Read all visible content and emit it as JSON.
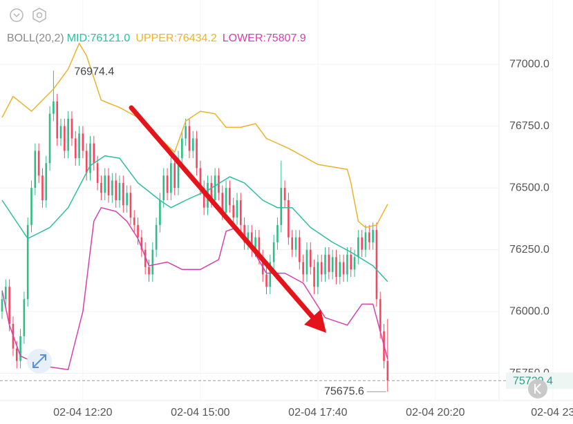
{
  "chart_data": {
    "type": "candlestick",
    "indicator": "BOLL(20,2)",
    "x": [
      "02-04 10:30",
      "02-04 10:35",
      "02-04 10:40",
      "02-04 10:45",
      "02-04 10:50",
      "02-04 10:55",
      "02-04 11:00",
      "02-04 11:05",
      "02-04 11:10",
      "02-04 11:15",
      "02-04 11:20",
      "02-04 11:25",
      "02-04 11:30",
      "02-04 11:35",
      "02-04 11:40",
      "02-04 11:45",
      "02-04 11:50",
      "02-04 11:55",
      "02-04 12:00",
      "02-04 12:05",
      "02-04 12:10",
      "02-04 12:15",
      "02-04 12:20",
      "02-04 12:25",
      "02-04 12:30",
      "02-04 12:35",
      "02-04 12:40",
      "02-04 12:45",
      "02-04 12:50",
      "02-04 12:55",
      "02-04 13:00",
      "02-04 13:05",
      "02-04 13:10",
      "02-04 13:15",
      "02-04 13:20",
      "02-04 13:25",
      "02-04 13:30",
      "02-04 13:35",
      "02-04 13:40",
      "02-04 13:45",
      "02-04 13:50",
      "02-04 13:55",
      "02-04 14:00",
      "02-04 14:05",
      "02-04 14:10",
      "02-04 14:15",
      "02-04 14:20",
      "02-04 14:25",
      "02-04 14:30",
      "02-04 14:35",
      "02-04 14:40",
      "02-04 14:45",
      "02-04 14:50",
      "02-04 14:55",
      "02-04 15:00",
      "02-04 15:05",
      "02-04 15:10",
      "02-04 15:15",
      "02-04 15:20",
      "02-04 15:25",
      "02-04 15:30",
      "02-04 15:35",
      "02-04 15:40",
      "02-04 15:45",
      "02-04 15:50",
      "02-04 15:55",
      "02-04 16:00",
      "02-04 16:05",
      "02-04 16:10",
      "02-04 16:15",
      "02-04 16:20",
      "02-04 16:25",
      "02-04 16:30",
      "02-04 16:35",
      "02-04 16:40",
      "02-04 16:45",
      "02-04 16:50",
      "02-04 16:55",
      "02-04 17:00",
      "02-04 17:05",
      "02-04 17:10",
      "02-04 17:15",
      "02-04 17:20",
      "02-04 17:25",
      "02-04 17:30",
      "02-04 17:35",
      "02-04 17:40",
      "02-04 17:45",
      "02-04 17:50",
      "02-04 17:55",
      "02-04 18:00",
      "02-04 18:05",
      "02-04 18:10",
      "02-04 18:15",
      "02-04 18:20",
      "02-04 18:25",
      "02-04 18:30",
      "02-04 18:35",
      "02-04 18:40",
      "02-04 18:45",
      "02-04 18:50",
      "02-04 18:55",
      "02-04 19:00",
      "02-04 19:05",
      "02-04 19:10",
      "02-04 19:15"
    ],
    "open": [
      76000,
      76050,
      76100,
      75950,
      75850,
      75800,
      75900,
      76050,
      76350,
      76500,
      76650,
      76550,
      76450,
      76600,
      76800,
      76850,
      76700,
      76750,
      76650,
      76780,
      76700,
      76620,
      76720,
      76650,
      76560,
      76680,
      76600,
      76520,
      76480,
      76550,
      76470,
      76530,
      76450,
      76520,
      76430,
      76480,
      76380,
      76350,
      76300,
      76250,
      76180,
      76150,
      76250,
      76350,
      76450,
      76550,
      76480,
      76600,
      76500,
      76620,
      76700,
      76750,
      76650,
      76700,
      76580,
      76500,
      76420,
      76520,
      76450,
      76550,
      76480,
      76400,
      76500,
      76430,
      76380,
      76450,
      76350,
      76280,
      76320,
      76250,
      76300,
      76220,
      76150,
      76100,
      76200,
      76280,
      76350,
      76500,
      76450,
      76300,
      76250,
      76300,
      76200,
      76150,
      76250,
      76180,
      76100,
      76200,
      76150,
      76230,
      76160,
      76220,
      76140,
      76200,
      76150,
      76230,
      76170,
      76220,
      76300,
      76250,
      76320,
      76280,
      76330,
      76050,
      75920,
      75800
    ],
    "high": [
      76080,
      76130,
      76130,
      75980,
      75880,
      75930,
      76080,
      76380,
      76530,
      76680,
      76680,
      76580,
      76630,
      76830,
      76974.4,
      76880,
      76780,
      76780,
      76810,
      76810,
      76730,
      76750,
      76750,
      76680,
      76710,
      76710,
      76630,
      76550,
      76580,
      76580,
      76560,
      76560,
      76550,
      76550,
      76510,
      76510,
      76410,
      76380,
      76330,
      76280,
      76210,
      76280,
      76380,
      76480,
      76580,
      76580,
      76630,
      76630,
      76650,
      76730,
      76780,
      76780,
      76730,
      76730,
      76610,
      76530,
      76550,
      76550,
      76580,
      76580,
      76510,
      76530,
      76530,
      76460,
      76480,
      76480,
      76380,
      76350,
      76350,
      76330,
      76330,
      76250,
      76180,
      76230,
      76310,
      76380,
      76610,
      76530,
      76480,
      76330,
      76330,
      76330,
      76230,
      76280,
      76280,
      76210,
      76230,
      76230,
      76260,
      76260,
      76250,
      76250,
      76230,
      76230,
      76260,
      76260,
      76250,
      76330,
      76330,
      76350,
      76350,
      76360,
      76360,
      76080,
      75950,
      75970
    ],
    "low": [
      75970,
      76020,
      75920,
      75820,
      75770,
      75770,
      75870,
      76020,
      76320,
      76470,
      76520,
      76420,
      76420,
      76570,
      76770,
      76670,
      76670,
      76620,
      76620,
      76670,
      76590,
      76590,
      76620,
      76530,
      76530,
      76570,
      76490,
      76450,
      76450,
      76440,
      76440,
      76420,
      76420,
      76400,
      76400,
      76350,
      76320,
      76270,
      76220,
      76150,
      76120,
      76120,
      76220,
      76320,
      76420,
      76450,
      76450,
      76470,
      76470,
      76590,
      76670,
      76620,
      76620,
      76550,
      76470,
      76390,
      76390,
      76420,
      76420,
      76450,
      76370,
      76370,
      76400,
      76350,
      76350,
      76320,
      76250,
      76250,
      76220,
      76220,
      76190,
      76120,
      76070,
      76070,
      76170,
      76250,
      76320,
      76420,
      76270,
      76220,
      76220,
      76170,
      76120,
      76120,
      76150,
      76070,
      76070,
      76120,
      76120,
      76130,
      76130,
      76110,
      76110,
      76120,
      76120,
      76140,
      76140,
      76190,
      76220,
      76220,
      76250,
      76250,
      76020,
      75890,
      75770,
      75675.6
    ],
    "close": [
      76050,
      76100,
      75950,
      75850,
      75800,
      75900,
      76050,
      76350,
      76500,
      76650,
      76550,
      76450,
      76600,
      76800,
      76850,
      76700,
      76750,
      76650,
      76780,
      76700,
      76620,
      76720,
      76650,
      76560,
      76680,
      76600,
      76520,
      76480,
      76550,
      76470,
      76530,
      76450,
      76520,
      76430,
      76480,
      76380,
      76350,
      76300,
      76250,
      76180,
      76150,
      76250,
      76350,
      76450,
      76550,
      76480,
      76600,
      76500,
      76620,
      76700,
      76750,
      76650,
      76700,
      76580,
      76500,
      76420,
      76520,
      76450,
      76550,
      76480,
      76400,
      76500,
      76430,
      76380,
      76450,
      76350,
      76280,
      76320,
      76250,
      76300,
      76220,
      76150,
      76100,
      76200,
      76280,
      76350,
      76500,
      76450,
      76300,
      76250,
      76300,
      76200,
      76150,
      76250,
      76180,
      76100,
      76200,
      76150,
      76230,
      76160,
      76220,
      76140,
      76200,
      76150,
      76230,
      76170,
      76220,
      76300,
      76250,
      76320,
      76280,
      76330,
      76050,
      75920,
      75800,
      75720.4
    ],
    "up_color": "#2ebd85",
    "down_color": "#f6465d",
    "bands": [
      {
        "name": "MID:76121.0",
        "color": "#2ebd9e",
        "x": [
          "02-04 10:30",
          "02-04 11:05",
          "02-04 11:35",
          "02-04 12:00",
          "02-04 12:30",
          "02-04 12:50",
          "02-04 13:10",
          "02-04 13:35",
          "02-04 14:05",
          "02-04 14:20",
          "02-04 14:40",
          "02-04 15:10",
          "02-04 15:40",
          "02-04 16:00",
          "02-04 16:25",
          "02-04 16:45",
          "02-04 17:05",
          "02-04 17:30",
          "02-04 18:00",
          "02-04 18:25",
          "02-04 18:55",
          "02-04 19:15"
        ],
        "values": [
          76450,
          76295,
          76340,
          76420,
          76590,
          76630,
          76620,
          76520,
          76450,
          76420,
          76450,
          76490,
          76545,
          76520,
          76450,
          76420,
          76420,
          76340,
          76280,
          76240,
          76185,
          76121.0
        ]
      },
      {
        "name": "UPPER:76434.2",
        "color": "#eab32a",
        "x": [
          "02-04 10:30",
          "02-04 10:45",
          "02-04 11:10",
          "02-04 11:40",
          "02-04 12:00",
          "02-04 12:15",
          "02-04 12:25",
          "02-04 12:45",
          "02-04 13:10",
          "02-04 13:35",
          "02-04 14:05",
          "02-04 14:25",
          "02-04 14:40",
          "02-04 15:00",
          "02-04 15:20",
          "02-04 15:35",
          "02-04 15:55",
          "02-04 16:15",
          "02-04 16:30",
          "02-04 17:00",
          "02-04 17:40",
          "02-04 18:20",
          "02-04 18:25",
          "02-04 18:35",
          "02-04 18:45",
          "02-04 19:00",
          "02-04 19:15"
        ],
        "values": [
          76785,
          76870,
          76810,
          76900,
          76980,
          77085,
          77035,
          76855,
          76825,
          76785,
          76700,
          76645,
          76770,
          76810,
          76800,
          76745,
          76745,
          76760,
          76700,
          76660,
          76595,
          76575,
          76520,
          76365,
          76340,
          76350,
          76434.2
        ]
      },
      {
        "name": "LOWER:75807.9",
        "color": "#d63fac",
        "x": [
          "02-04 10:30",
          "02-04 10:40",
          "02-04 10:55",
          "02-04 11:25",
          "02-04 12:00",
          "02-04 12:20",
          "02-04 12:35",
          "02-04 12:45",
          "02-04 13:05",
          "02-04 13:20",
          "02-04 13:35",
          "02-04 13:50",
          "02-04 14:15",
          "02-04 14:35",
          "02-04 15:00",
          "02-04 15:25",
          "02-04 15:35",
          "02-04 15:50",
          "02-04 16:10",
          "02-04 16:30",
          "02-04 16:55",
          "02-04 17:20",
          "02-04 17:50",
          "02-04 18:20",
          "02-04 18:40",
          "02-04 18:55",
          "02-04 19:15"
        ],
        "values": [
          76085,
          75945,
          75820,
          75780,
          75765,
          76000,
          76365,
          76420,
          76405,
          76365,
          76295,
          76185,
          76200,
          76170,
          76170,
          76210,
          76325,
          76340,
          76255,
          76155,
          76155,
          76115,
          75975,
          75945,
          76030,
          76030,
          75807.9
        ]
      }
    ],
    "ylim": [
      75640,
      77260
    ],
    "yticks": [
      {
        "value": 75750,
        "label": "75750.0"
      },
      {
        "value": 76000,
        "label": "76000.0"
      },
      {
        "value": 76250,
        "label": "76250.0"
      },
      {
        "value": 76500,
        "label": "76500.0"
      },
      {
        "value": 76750,
        "label": "76750.0"
      },
      {
        "value": 77000,
        "label": "77000.0"
      }
    ],
    "xticks": [
      "02-04 12:20",
      "02-04 15:00",
      "02-04 17:40",
      "02-04 20:20",
      {
        "value": "02-04 23:00",
        "label": "02-04 23"
      }
    ],
    "grid": true
  }
}
